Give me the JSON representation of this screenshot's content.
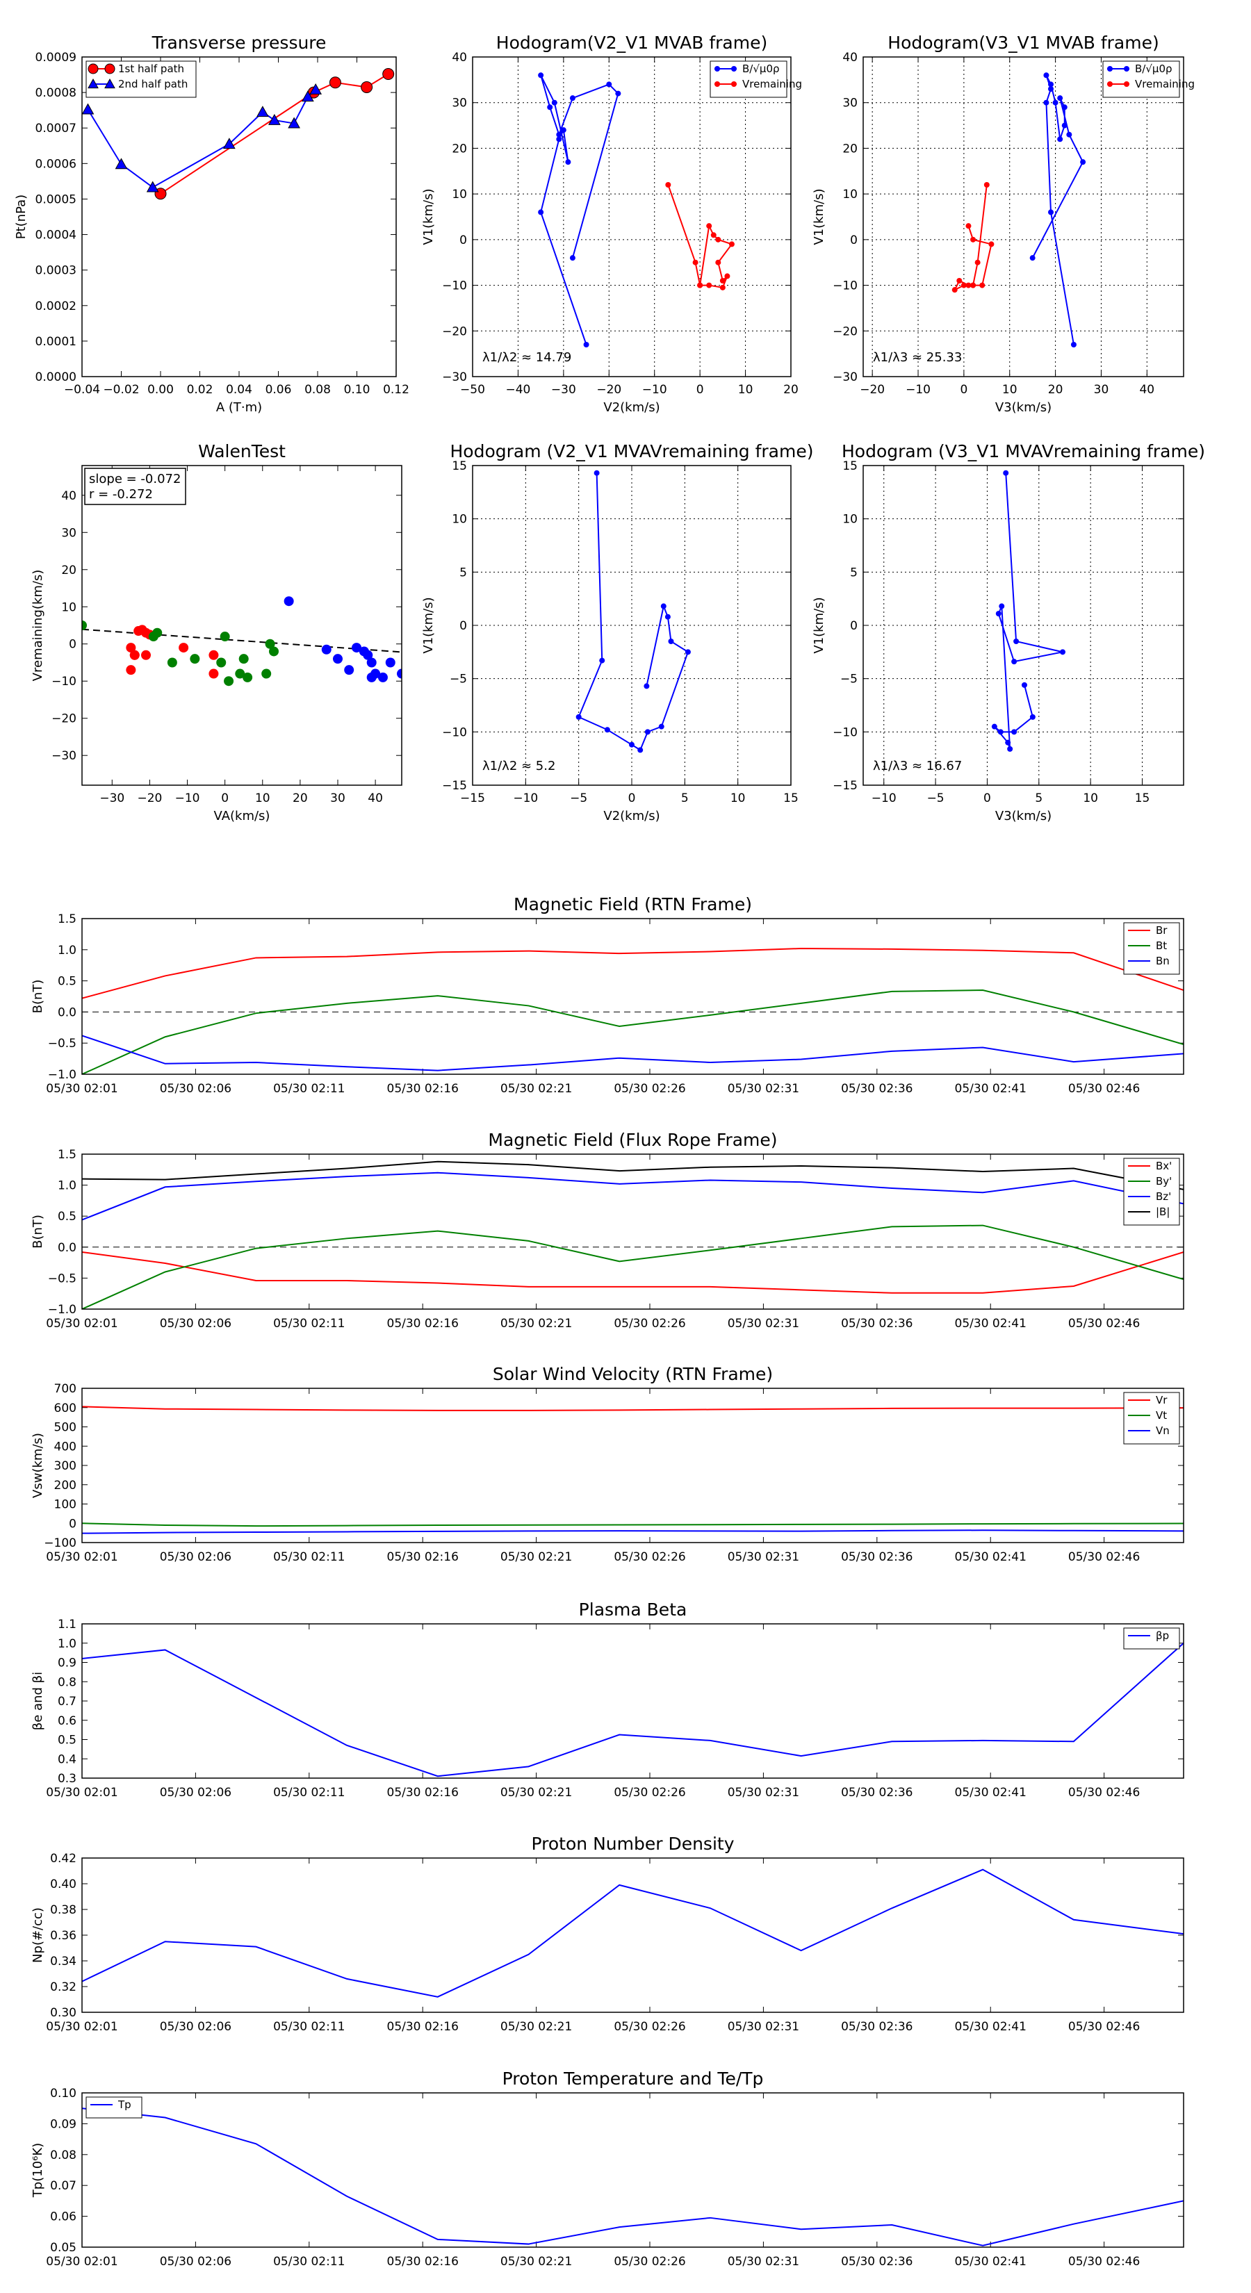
{
  "colors": {
    "red": "#ff0000",
    "green": "#008000",
    "blue": "#0000ff",
    "black": "#000000"
  },
  "time_ticks": [
    "05/30 02:01",
    "05/30 02:06",
    "05/30 02:11",
    "05/30 02:16",
    "05/30 02:21",
    "05/30 02:26",
    "05/30 02:31",
    "05/30 02:36",
    "05/30 02:41",
    "05/30 02:46"
  ],
  "chart_data": [
    {
      "id": "transverse-pressure",
      "type": "line",
      "title": "Transverse pressure",
      "xlabel": "A (T·m)",
      "ylabel": "Pt(nPa)",
      "xlim": [
        -0.04,
        0.12
      ],
      "ylim": [
        0,
        0.0009
      ],
      "xticks": [
        -0.04,
        -0.02,
        0.0,
        0.02,
        0.04,
        0.06,
        0.08,
        0.1,
        0.12
      ],
      "xtick_labels": [
        "−0.04",
        "−0.02",
        "0.00",
        "0.02",
        "0.04",
        "0.06",
        "0.08",
        "0.10",
        "0.12"
      ],
      "yticks": [
        0,
        0.0001,
        0.0002,
        0.0003,
        0.0004,
        0.0005,
        0.0006,
        0.0007,
        0.0008,
        0.0009
      ],
      "ytick_labels": [
        "0.0000",
        "0.0001",
        "0.0002",
        "0.0003",
        "0.0004",
        "0.0005",
        "0.0006",
        "0.0007",
        "0.0008",
        "0.0009"
      ],
      "grid": false,
      "legend": "top-left",
      "series": [
        {
          "name": "1st half path",
          "color": "red",
          "marker": "circle",
          "x": [
            0.0,
            0.078,
            0.089,
            0.105,
            0.116
          ],
          "y": [
            0.000515,
            0.0008,
            0.000828,
            0.000815,
            0.000852
          ]
        },
        {
          "name": "2nd half path",
          "color": "blue",
          "marker": "triangle",
          "x": [
            -0.037,
            -0.02,
            -0.004,
            0.035,
            0.052,
            0.058,
            0.068,
            0.075,
            0.079
          ],
          "y": [
            0.000752,
            0.000598,
            0.000533,
            0.000655,
            0.000745,
            0.000722,
            0.000713,
            0.000788,
            0.000808
          ]
        }
      ]
    },
    {
      "id": "hodogram-v2v1-mvab",
      "type": "line",
      "title": "Hodogram(V2_V1 MVAB frame)",
      "xlabel": "V2(km/s)",
      "ylabel": "V1(km/s)",
      "xlim": [
        -50,
        20
      ],
      "ylim": [
        -30,
        40
      ],
      "xticks": [
        -50,
        -40,
        -30,
        -20,
        -10,
        0,
        10,
        20
      ],
      "yticks": [
        -30,
        -20,
        -10,
        0,
        10,
        20,
        30,
        40
      ],
      "grid": true,
      "legend": "top-right",
      "annotation": "λ1/λ2 ≈ 14.79",
      "series": [
        {
          "name": "B/√μ0ρ",
          "color": "blue",
          "x": [
            -25,
            -35,
            -31,
            -30,
            -29,
            -32,
            -35,
            -33,
            -31,
            -28,
            -20,
            -18,
            -28
          ],
          "y": [
            -23,
            6,
            22,
            24,
            17,
            30,
            36,
            29,
            23,
            31,
            34,
            32,
            -4
          ]
        },
        {
          "name": "Vremaining",
          "color": "red",
          "x": [
            -7,
            -1,
            0,
            2,
            5,
            6,
            5,
            4,
            7,
            4,
            3,
            2,
            0,
            0
          ],
          "y": [
            12,
            -5,
            -10,
            -10,
            -10.5,
            -8,
            -9,
            -5,
            -1,
            0,
            1,
            3,
            -10,
            -10
          ]
        }
      ]
    },
    {
      "id": "hodogram-v3v1-mvab",
      "type": "line",
      "title": "Hodogram(V3_V1 MVAB frame)",
      "xlabel": "V3(km/s)",
      "ylabel": "V1(km/s)",
      "xlim": [
        -22,
        48
      ],
      "ylim": [
        -30,
        40
      ],
      "xticks": [
        -20,
        -10,
        0,
        10,
        20,
        30,
        40
      ],
      "yticks": [
        -30,
        -20,
        -10,
        0,
        10,
        20,
        30,
        40
      ],
      "grid": true,
      "legend": "top-right",
      "annotation": "λ1/λ3 ≈ 25.33",
      "series": [
        {
          "name": "B/√μ0ρ",
          "color": "blue",
          "x": [
            24,
            19,
            18,
            19,
            18,
            19,
            20,
            21,
            22,
            22,
            21,
            23,
            26,
            15
          ],
          "y": [
            -23,
            6,
            30,
            33,
            36,
            34,
            30,
            22,
            25,
            29,
            31,
            23,
            17,
            -4
          ]
        },
        {
          "name": "Vremaining",
          "color": "red",
          "x": [
            5,
            3,
            2,
            1,
            -1,
            -2,
            0,
            2,
            4,
            6,
            2,
            1
          ],
          "y": [
            12,
            -5,
            -10,
            -10,
            -9,
            -11,
            -10,
            -10,
            -10,
            -1,
            0,
            3
          ]
        }
      ]
    },
    {
      "id": "walen-test",
      "type": "scatter",
      "title": "WalenTest",
      "xlabel": "VA(km/s)",
      "ylabel": "Vremaining(km/s)",
      "xlim": [
        -38,
        47
      ],
      "ylim": [
        -38,
        48
      ],
      "xticks": [
        -30,
        -20,
        -10,
        0,
        10,
        20,
        30,
        40
      ],
      "yticks": [
        -30,
        -20,
        -10,
        0,
        10,
        20,
        30,
        40
      ],
      "grid": false,
      "annotation_lines": [
        "slope = -0.072",
        "r = -0.272"
      ],
      "fit_line": {
        "slope": -0.072,
        "intercept": 1.2
      },
      "series": [
        {
          "color": "red",
          "x": [
            -25,
            -24,
            -23,
            -22,
            -21,
            -20,
            -21,
            -24,
            -25,
            -11,
            -3,
            -3
          ],
          "y": [
            -7,
            -3,
            3.5,
            3.8,
            3.0,
            2.5,
            -3,
            -3,
            -1,
            -1,
            -3,
            -8
          ]
        },
        {
          "color": "green",
          "x": [
            -38,
            -19,
            -18,
            -14,
            -8,
            -1,
            0,
            1,
            4,
            5,
            6,
            11,
            12,
            13
          ],
          "y": [
            5,
            2,
            3,
            -5,
            -4,
            -5,
            2,
            -10,
            -8,
            -4,
            -9,
            -8,
            0,
            -2
          ]
        },
        {
          "color": "blue",
          "x": [
            17,
            27,
            30,
            33,
            35,
            37,
            38,
            39,
            39,
            40,
            42,
            44,
            47
          ],
          "y": [
            11.5,
            -1.5,
            -4,
            -7,
            -1,
            -2,
            -3,
            -5,
            -9,
            -8,
            -9,
            -5,
            -8
          ]
        }
      ]
    },
    {
      "id": "hodogram-v2v1-mvav",
      "type": "line",
      "title": "Hodogram (V2_V1 MVAVremaining frame)",
      "xlabel": "V2(km/s)",
      "ylabel": "V1(km/s)",
      "xlim": [
        -15,
        15
      ],
      "ylim": [
        -15,
        15
      ],
      "xticks": [
        -15,
        -10,
        -5,
        0,
        5,
        10,
        15
      ],
      "yticks": [
        -15,
        -10,
        -5,
        0,
        5,
        10,
        15
      ],
      "grid": true,
      "annotation": "λ1/λ2 ≈ 5.2",
      "series": [
        {
          "color": "blue",
          "x": [
            -3.3,
            -2.8,
            -5.0,
            -2.3,
            0.0,
            0.8,
            1.5,
            2.8,
            5.3,
            3.7,
            3.4,
            3.0,
            1.4
          ],
          "y": [
            14.3,
            -3.3,
            -8.6,
            -9.8,
            -11.2,
            -11.7,
            -10.0,
            -9.5,
            -2.5,
            -1.5,
            0.8,
            1.8,
            -5.7
          ]
        }
      ]
    },
    {
      "id": "hodogram-v3v1-mvav",
      "type": "line",
      "title": "Hodogram (V3_V1 MVAVremaining frame)",
      "xlabel": "V3(km/s)",
      "ylabel": "V1(km/s)",
      "xlim": [
        -12,
        19
      ],
      "ylim": [
        -15,
        15
      ],
      "xticks": [
        -10,
        -5,
        0,
        5,
        10,
        15
      ],
      "yticks": [
        -15,
        -10,
        -5,
        0,
        5,
        10,
        15
      ],
      "grid": true,
      "annotation": "λ1/λ3 ≈ 16.67",
      "series": [
        {
          "color": "blue",
          "x": [
            1.8,
            2.8,
            7.3,
            2.6,
            1.1,
            1.4,
            2.2,
            2.0,
            0.7,
            1.3,
            2.6,
            4.4,
            3.6
          ],
          "y": [
            14.3,
            -1.5,
            -2.5,
            -3.4,
            1.1,
            1.8,
            -11.6,
            -11.0,
            -9.5,
            -10.0,
            -10.0,
            -8.6,
            -5.6
          ]
        }
      ]
    },
    {
      "id": "magnetic-field-rtn",
      "type": "line",
      "title": "Magnetic Field (RTN Frame)",
      "ylabel": "B(nT)",
      "xlim": [
        0,
        48.5
      ],
      "ylim": [
        -1.0,
        1.5
      ],
      "yticks": [
        -1.0,
        -0.5,
        0.0,
        0.5,
        1.0,
        1.5
      ],
      "ytick_labels": [
        "−1.0",
        "−0.5",
        "0.0",
        "0.5",
        "1.0",
        "1.5"
      ],
      "grid": false,
      "legend": "top-right",
      "dashed_zero": true,
      "x": [
        0,
        3.66,
        7.66,
        11.66,
        15.66,
        19.66,
        23.66,
        27.66,
        31.66,
        35.66,
        39.66,
        43.66,
        48.5
      ],
      "series": [
        {
          "name": "Br",
          "color": "red",
          "values": [
            0.22,
            0.58,
            0.87,
            0.89,
            0.96,
            0.98,
            0.94,
            0.97,
            1.02,
            1.01,
            0.99,
            0.95,
            0.35
          ]
        },
        {
          "name": "Bt",
          "color": "green",
          "values": [
            -1.0,
            -0.4,
            -0.02,
            0.14,
            0.26,
            0.1,
            -0.23,
            -0.05,
            0.14,
            0.33,
            0.35,
            0.0,
            -0.52
          ]
        },
        {
          "name": "Bn",
          "color": "blue",
          "values": [
            -0.38,
            -0.83,
            -0.81,
            -0.88,
            -0.94,
            -0.85,
            -0.74,
            -0.81,
            -0.76,
            -0.63,
            -0.57,
            -0.8,
            -0.67
          ]
        }
      ]
    },
    {
      "id": "magnetic-field-flux-rope",
      "type": "line",
      "title": "Magnetic Field (Flux Rope Frame)",
      "ylabel": "B(nT)",
      "xlim": [
        0,
        48.5
      ],
      "ylim": [
        -1.0,
        1.5
      ],
      "yticks": [
        -1.0,
        -0.5,
        0.0,
        0.5,
        1.0,
        1.5
      ],
      "ytick_labels": [
        "−1.0",
        "−0.5",
        "0.0",
        "0.5",
        "1.0",
        "1.5"
      ],
      "grid": false,
      "legend": "top-right",
      "dashed_zero": true,
      "x": [
        0,
        3.66,
        7.66,
        11.66,
        15.66,
        19.66,
        23.66,
        27.66,
        31.66,
        35.66,
        39.66,
        43.66,
        48.5
      ],
      "series": [
        {
          "name": "Bx'",
          "color": "red",
          "values": [
            -0.08,
            -0.26,
            -0.54,
            -0.54,
            -0.58,
            -0.64,
            -0.64,
            -0.64,
            -0.69,
            -0.74,
            -0.74,
            -0.63,
            -0.08
          ]
        },
        {
          "name": "By'",
          "color": "green",
          "values": [
            -1.0,
            -0.4,
            -0.02,
            0.14,
            0.26,
            0.1,
            -0.23,
            -0.05,
            0.14,
            0.33,
            0.35,
            0.0,
            -0.52
          ]
        },
        {
          "name": "Bz'",
          "color": "blue",
          "values": [
            0.44,
            0.97,
            1.06,
            1.14,
            1.2,
            1.12,
            1.02,
            1.08,
            1.05,
            0.95,
            0.88,
            1.07,
            0.7
          ]
        },
        {
          "name": "|B|",
          "color": "black",
          "values": [
            1.1,
            1.09,
            1.18,
            1.27,
            1.38,
            1.33,
            1.23,
            1.29,
            1.31,
            1.28,
            1.22,
            1.27,
            0.93
          ]
        }
      ]
    },
    {
      "id": "solar-wind-velocity",
      "type": "line",
      "title": "Solar Wind Velocity (RTN Frame)",
      "ylabel": "Vsw(km/s)",
      "xlim": [
        0,
        48.5
      ],
      "ylim": [
        -100,
        700
      ],
      "yticks": [
        -100,
        0,
        100,
        200,
        300,
        400,
        500,
        600,
        700
      ],
      "ytick_labels": [
        "−100",
        "0",
        "100",
        "200",
        "300",
        "400",
        "500",
        "600",
        "700"
      ],
      "grid": false,
      "legend": "top-right",
      "x": [
        0,
        3.66,
        7.66,
        11.66,
        15.66,
        19.66,
        23.66,
        27.66,
        31.66,
        35.66,
        39.66,
        43.66,
        48.5
      ],
      "series": [
        {
          "name": "Vr",
          "color": "red",
          "values": [
            605,
            593,
            590,
            587,
            585,
            585,
            587,
            590,
            593,
            596,
            597,
            597,
            598
          ]
        },
        {
          "name": "Vt",
          "color": "green",
          "values": [
            0,
            -10,
            -14,
            -12,
            -10,
            -9,
            -8,
            -7,
            -6,
            -5,
            -3,
            -2,
            -1
          ]
        },
        {
          "name": "Vn",
          "color": "blue",
          "values": [
            -52,
            -48,
            -46,
            -44,
            -42,
            -40,
            -39,
            -40,
            -41,
            -38,
            -36,
            -38,
            -40
          ]
        }
      ]
    },
    {
      "id": "plasma-beta",
      "type": "line",
      "title": "Plasma Beta",
      "ylabel": "βe and βi",
      "xlim": [
        0,
        48.5
      ],
      "ylim": [
        0.3,
        1.1
      ],
      "yticks": [
        0.3,
        0.4,
        0.5,
        0.6,
        0.7,
        0.8,
        0.9,
        1.0,
        1.1
      ],
      "ytick_labels": [
        "0.3",
        "0.4",
        "0.5",
        "0.6",
        "0.7",
        "0.8",
        "0.9",
        "1.0",
        "1.1"
      ],
      "grid": false,
      "legend": "top-right",
      "x": [
        0,
        3.66,
        11.66,
        15.66,
        19.66,
        23.66,
        27.66,
        31.66,
        35.66,
        39.66,
        43.66,
        48.5
      ],
      "series": [
        {
          "name": "βp",
          "color": "blue",
          "values": [
            0.92,
            0.965,
            0.47,
            0.31,
            0.36,
            0.525,
            0.495,
            0.415,
            0.49,
            0.495,
            0.49,
            1.0
          ]
        }
      ]
    },
    {
      "id": "proton-number-density",
      "type": "line",
      "title": "Proton Number Density",
      "ylabel": "Np(#/cc)",
      "xlim": [
        0,
        48.5
      ],
      "ylim": [
        0.3,
        0.42
      ],
      "yticks": [
        0.3,
        0.32,
        0.34,
        0.36,
        0.38,
        0.4,
        0.42
      ],
      "ytick_labels": [
        "0.30",
        "0.32",
        "0.34",
        "0.36",
        "0.38",
        "0.40",
        "0.42"
      ],
      "grid": false,
      "x": [
        0,
        3.66,
        7.66,
        11.66,
        15.66,
        19.66,
        23.66,
        27.66,
        31.66,
        35.66,
        39.66,
        43.66,
        48.5
      ],
      "series": [
        {
          "color": "blue",
          "values": [
            0.324,
            0.355,
            0.351,
            0.326,
            0.312,
            0.345,
            0.399,
            0.381,
            0.348,
            0.381,
            0.411,
            0.372,
            0.361
          ]
        }
      ]
    },
    {
      "id": "proton-temperature",
      "type": "line",
      "title": "Proton Temperature and Te/Tp",
      "ylabel": "Tp(10⁶K)",
      "xlim": [
        0,
        48.5
      ],
      "ylim": [
        0.05,
        0.1
      ],
      "yticks": [
        0.05,
        0.06,
        0.07,
        0.08,
        0.09,
        0.1
      ],
      "ytick_labels": [
        "0.05",
        "0.06",
        "0.07",
        "0.08",
        "0.09",
        "0.10"
      ],
      "grid": false,
      "legend": "top-left",
      "x": [
        0,
        3.66,
        7.66,
        11.66,
        15.66,
        19.66,
        23.66,
        27.66,
        31.66,
        35.66,
        39.66,
        43.66,
        48.5
      ],
      "series": [
        {
          "name": "Tp",
          "color": "blue",
          "values": [
            0.095,
            0.092,
            0.0835,
            0.0665,
            0.0525,
            0.051,
            0.0565,
            0.0595,
            0.0558,
            0.0572,
            0.0505,
            0.0575,
            0.065
          ]
        }
      ]
    }
  ]
}
